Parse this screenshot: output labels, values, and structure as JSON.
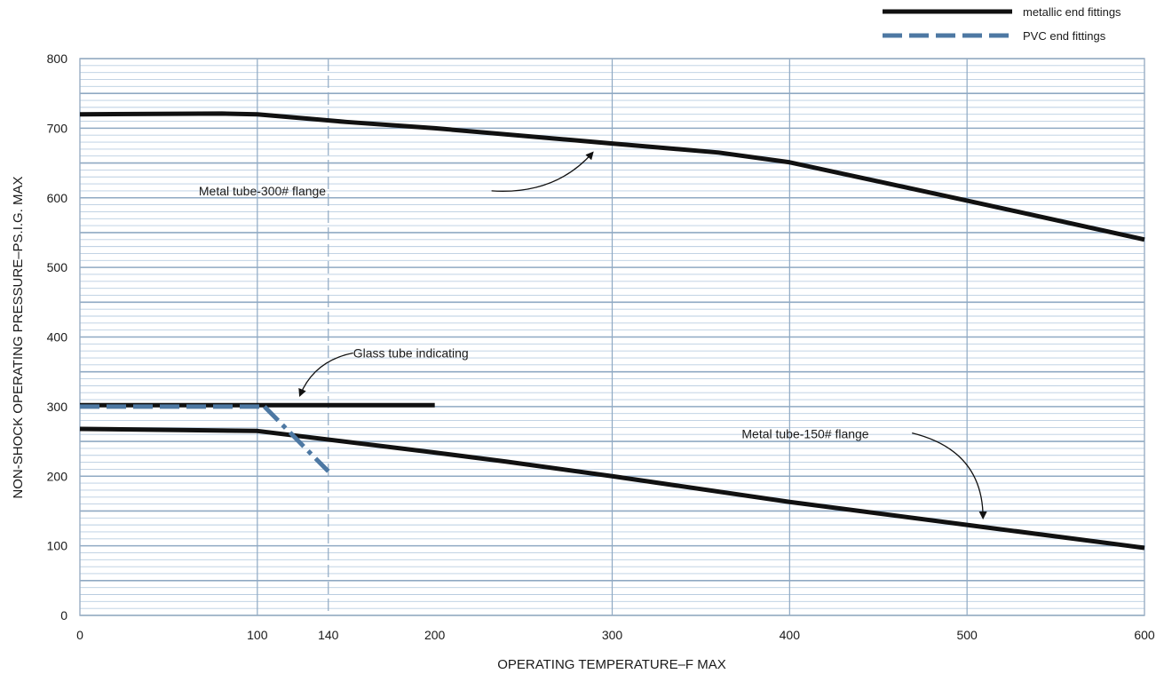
{
  "chart_data": {
    "type": "line",
    "x_label": "OPERATING TEMPERATURE–F MAX",
    "y_label": "NON-SHOCK OPERATING PRESSURE–PS.I.G. MAX",
    "xlim": [
      0,
      600
    ],
    "ylim": [
      0,
      800
    ],
    "x_ticks": [
      0,
      100,
      140,
      200,
      300,
      400,
      500,
      600
    ],
    "y_ticks": [
      0,
      100,
      200,
      300,
      400,
      500,
      600,
      700,
      800
    ],
    "x_major_gridlines": [
      100,
      140,
      300,
      400,
      500
    ],
    "y_minor_step": 10,
    "y_major_step": 50,
    "grid": true,
    "legend_position": "top-right",
    "colors": {
      "metallic": "#111111",
      "pvc": "#4d78a3",
      "grid_major": "#8fa9c3",
      "grid_minor": "#b9cde0",
      "frame": "#9aaec4"
    },
    "legend": [
      {
        "label": "metallic end fittings",
        "style": "solid",
        "key": "metallic"
      },
      {
        "label": "PVC end fittings",
        "style": "dashed",
        "key": "pvc"
      }
    ],
    "series": [
      {
        "name": "Metal tube-300# flange",
        "style": "metallic",
        "x": [
          0,
          80,
          100,
          150,
          200,
          300,
          360,
          400,
          500,
          600
        ],
        "y": [
          720,
          721,
          720,
          709,
          700,
          678,
          665,
          651,
          596,
          540
        ]
      },
      {
        "name": "Glass tube indicating",
        "style": "metallic",
        "x": [
          0,
          200
        ],
        "y": [
          302,
          302
        ]
      },
      {
        "name": "Metal tube-150# flange",
        "style": "metallic",
        "x": [
          0,
          100,
          200,
          240,
          300,
          400,
          500,
          600
        ],
        "y": [
          268,
          265,
          234,
          221,
          200,
          163,
          130,
          97
        ]
      },
      {
        "name": "",
        "style": "pvc-dashed",
        "x": [
          0,
          104
        ],
        "y": [
          300,
          300
        ]
      },
      {
        "name": "",
        "style": "pvc-dashdot",
        "x": [
          104,
          140
        ],
        "y": [
          300,
          207
        ]
      }
    ],
    "annotations": [
      {
        "text": "Metal tube-300# flange",
        "x": 67,
        "y": 610,
        "arrow_from": [
          232,
          610
        ],
        "arrow_ctrl": [
          268,
          604
        ],
        "arrow_to": [
          289,
          665
        ]
      },
      {
        "text": "Glass tube indicating",
        "x": 154,
        "y": 377,
        "arrow_from": [
          154,
          377
        ],
        "arrow_ctrl": [
          132,
          366
        ],
        "arrow_to": [
          124,
          316
        ]
      },
      {
        "text": "Metal tube-150# flange",
        "x": 373,
        "y": 261,
        "arrow_from": [
          469,
          262
        ],
        "arrow_ctrl": [
          509,
          237
        ],
        "arrow_to": [
          509,
          140
        ]
      }
    ]
  }
}
